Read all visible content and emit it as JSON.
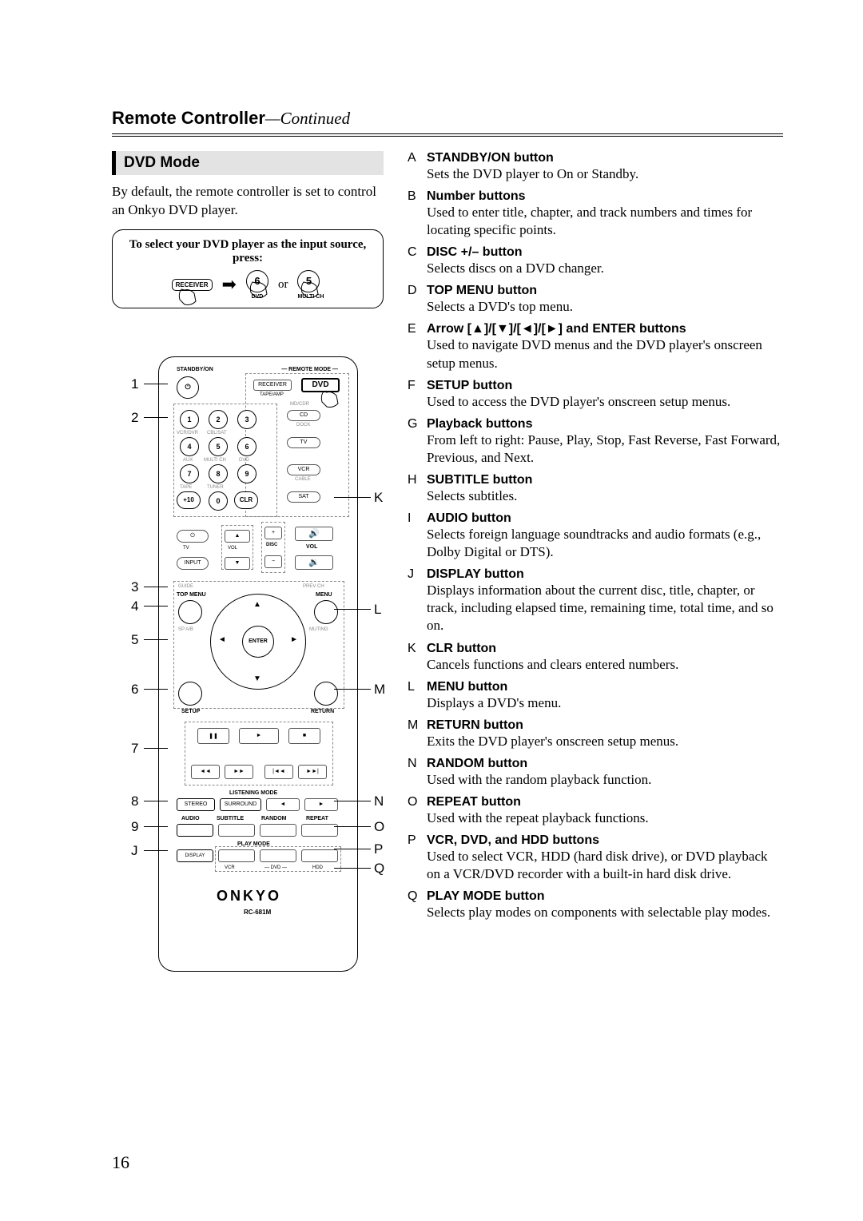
{
  "header": {
    "title": "Remote Controller",
    "continued": "—Continued"
  },
  "section": {
    "heading": "DVD Mode",
    "intro": "By default, the remote controller is set to control an Onkyo DVD player.",
    "select_caption": "To select your DVD player as the input source, press:",
    "receiver": "RECEIVER",
    "btn6": "6",
    "btn6_label": "DVD",
    "or": "or",
    "btn5": "5",
    "btn5_label": "MULTI CH"
  },
  "remote": {
    "standby_on": "STANDBY/ON",
    "remote_mode": "REMOTE MODE",
    "receiver": "RECEIVER",
    "dvd": "DVD",
    "tape_amp": "TAPE/AMP",
    "md_cdr": "MD/CDR",
    "cd": "CD",
    "dock": "DOCK",
    "tv": "TV",
    "vcr": "VCR",
    "sat": "SAT",
    "cable": "CABLE",
    "vcr_dvr": "VCR/DVR",
    "cbl_sat": "CBL/SAT",
    "aux": "AUX",
    "multich": "MULTI CH",
    "dvd2": "DVD",
    "tape": "TAPE",
    "tuner": "TUNER",
    "plus10": "+10",
    "clr": "CLR",
    "tv_s": "TV",
    "input": "INPUT",
    "vol": "VOL",
    "disc": "DISC",
    "guide": "GUIDE",
    "topmenu": "TOP MENU",
    "prevch": "PREV CH",
    "menu": "MENU",
    "spab": "SP A/B",
    "muting": "MUTING",
    "enter": "ENTER",
    "setup": "SETUP",
    "return": "RETURN",
    "listening": "LISTENING MODE",
    "stereo": "STEREO",
    "surround": "SURROUND",
    "audio": "AUDIO",
    "subtitle": "SUBTITLE",
    "random": "RANDOM",
    "repeat": "REPEAT",
    "playmode": "PLAY MODE",
    "display": "DISPLAY",
    "vcr2": "VCR",
    "dvd3": "DVD",
    "hdd": "HDD",
    "brand": "ONKYO",
    "model": "RC-681M"
  },
  "callouts": {
    "left": [
      "1",
      "2",
      "3",
      "4",
      "5",
      "6",
      "7",
      "8",
      "9",
      "J"
    ],
    "right": [
      "K",
      "L",
      "M",
      "N",
      "O",
      "P",
      "Q"
    ]
  },
  "entries": [
    {
      "l": "A",
      "t": "STANDBY/ON button",
      "d": "Sets the DVD player to On or Standby."
    },
    {
      "l": "B",
      "t": "Number buttons",
      "d": "Used to enter title, chapter, and track numbers and times for locating specific points."
    },
    {
      "l": "C",
      "t": "DISC +/– button",
      "d": "Selects discs on a DVD changer."
    },
    {
      "l": "D",
      "t": "TOP MENU button",
      "d": "Selects a DVD's top menu."
    },
    {
      "l": "E",
      "t": "Arrow [▲]/[▼]/[◄]/[►] and ENTER buttons",
      "d": "Used to navigate DVD menus and the DVD player's onscreen setup menus."
    },
    {
      "l": "F",
      "t": "SETUP button",
      "d": "Used to access the DVD player's onscreen setup menus."
    },
    {
      "l": "G",
      "t": "Playback buttons",
      "d": "From left to right: Pause, Play, Stop, Fast Reverse, Fast Forward, Previous, and Next."
    },
    {
      "l": "H",
      "t": "SUBTITLE button",
      "d": "Selects subtitles."
    },
    {
      "l": "I",
      "t": "AUDIO button",
      "d": "Selects foreign language soundtracks and audio formats (e.g., Dolby Digital or DTS)."
    },
    {
      "l": "J",
      "t": "DISPLAY button",
      "d": "Displays information about the current disc, title, chapter, or track, including elapsed time, remaining time, total time, and so on."
    },
    {
      "l": "K",
      "t": "CLR button",
      "d": "Cancels functions and clears entered numbers."
    },
    {
      "l": "L",
      "t": "MENU button",
      "d": "Displays a DVD's menu."
    },
    {
      "l": "M",
      "t": "RETURN button",
      "d": "Exits the DVD player's onscreen setup menus."
    },
    {
      "l": "N",
      "t": "RANDOM button",
      "d": "Used with the random playback function."
    },
    {
      "l": "O",
      "t": "REPEAT button",
      "d": "Used with the repeat playback functions."
    },
    {
      "l": "P",
      "t": "VCR, DVD, and HDD buttons",
      "d": "Used to select VCR, HDD (hard disk drive), or DVD playback on a VCR/DVD recorder with a built-in hard disk drive."
    },
    {
      "l": "Q",
      "t": "PLAY MODE button",
      "d": "Selects play modes on components with selectable play modes."
    }
  ],
  "page_number": "16"
}
